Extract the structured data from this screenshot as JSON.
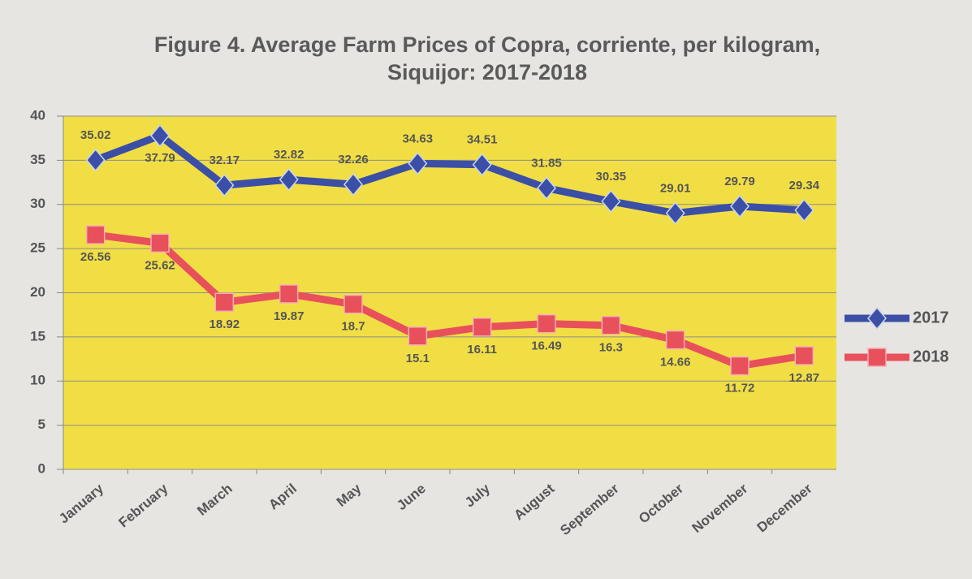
{
  "chart_data": {
    "type": "line",
    "title": "Figure 4. Average Farm Prices of Copra, corriente,  per kilogram, Siquijor: 2017-2018",
    "categories": [
      "January",
      "February",
      "March",
      "April",
      "May",
      "June",
      "July",
      "August",
      "September",
      "October",
      "November",
      "December"
    ],
    "series": [
      {
        "name": "2017",
        "color": "#3b4fa6",
        "marker": "diamond",
        "values": [
          35.02,
          37.79,
          32.17,
          32.82,
          32.26,
          34.63,
          34.51,
          31.85,
          30.35,
          29.01,
          29.79,
          29.34
        ]
      },
      {
        "name": "2018",
        "color": "#e8505b",
        "marker": "square",
        "values": [
          26.56,
          25.62,
          18.92,
          19.87,
          18.7,
          15.1,
          16.11,
          16.49,
          16.3,
          14.66,
          11.72,
          12.87
        ]
      }
    ],
    "ylim": [
      0,
      40
    ],
    "yticks": [
      0,
      5,
      10,
      15,
      20,
      25,
      30,
      35,
      40
    ],
    "grid": true,
    "legend": "right"
  }
}
